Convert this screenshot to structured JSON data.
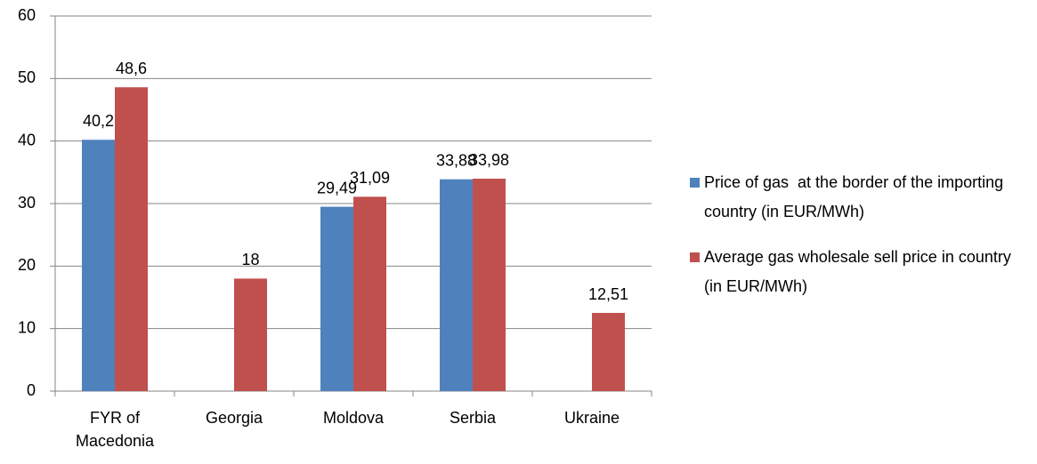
{
  "chart_data": {
    "type": "bar",
    "categories": [
      "FYR of Macedonia",
      "Georgia",
      "Moldova",
      "Serbia",
      "Ukraine"
    ],
    "series": [
      {
        "name": "Price of gas  at the border of the importing country (in EUR/MWh)",
        "color": "#4f81bd",
        "values": [
          40.2,
          null,
          29.49,
          33.88,
          null
        ],
        "value_labels": [
          "40,2",
          null,
          "29,49",
          "33,88",
          null
        ]
      },
      {
        "name": "Average gas wholesale sell price in country (in EUR/MWh)",
        "color": "#c0504d",
        "values": [
          48.6,
          18,
          31.09,
          33.98,
          12.51
        ],
        "value_labels": [
          "48,6",
          "18",
          "31,09",
          "33,98",
          "12,51"
        ]
      }
    ],
    "ylim": [
      0,
      60
    ],
    "yticks": [
      0,
      10,
      20,
      30,
      40,
      50,
      60
    ],
    "grid": true,
    "legend": "right"
  }
}
